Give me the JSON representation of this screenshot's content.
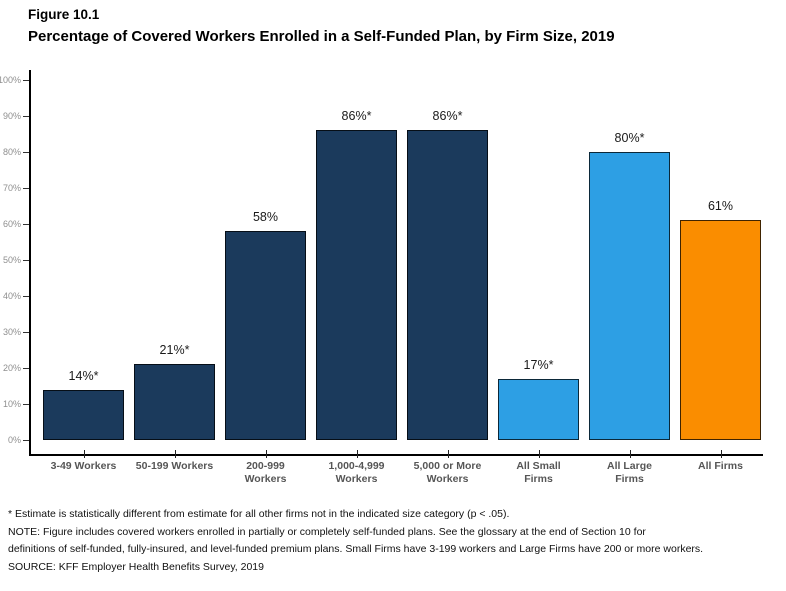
{
  "figure": {
    "label": "Figure 10.1",
    "title": "Percentage of Covered Workers Enrolled in a Self-Funded Plan, by Firm Size, 2019"
  },
  "chart_data": {
    "type": "bar",
    "title": "Percentage of Covered Workers Enrolled in a Self-Funded Plan, by Firm Size, 2019",
    "categories": [
      "3-49 Workers",
      "50-199 Workers",
      "200-999 Workers",
      "1,000-4,999 Workers",
      "5,000 or More Workers",
      "All Small Firms",
      "All Large Firms",
      "All Firms"
    ],
    "category_lines": [
      [
        "3-49 Workers"
      ],
      [
        "50-199 Workers"
      ],
      [
        "200-999",
        "Workers"
      ],
      [
        "1,000-4,999",
        "Workers"
      ],
      [
        "5,000 or More",
        "Workers"
      ],
      [
        "All Small",
        "Firms"
      ],
      [
        "All Large",
        "Firms"
      ],
      [
        "All Firms"
      ]
    ],
    "values": [
      14,
      21,
      58,
      86,
      86,
      17,
      80,
      61
    ],
    "value_labels": [
      "14%*",
      "21%*",
      "58%",
      "86%*",
      "86%*",
      "17%*",
      "80%*",
      "61%"
    ],
    "bar_color_roles": [
      "firm_size",
      "firm_size",
      "firm_size",
      "firm_size",
      "firm_size",
      "summary_blue",
      "summary_blue",
      "summary_orange"
    ],
    "colors": {
      "firm_size": "#1B3A5C",
      "summary_blue": "#2D9FE4",
      "summary_orange": "#FA8D00"
    },
    "xlabel": "",
    "ylabel": "",
    "ylim": [
      0,
      100
    ],
    "y_tick_step": 10,
    "y_tick_suffix": "%",
    "grid": false,
    "legend": false
  },
  "footnotes": {
    "line1": "* Estimate is statistically different from estimate for all other firms not in the indicated size category (p < .05).",
    "line2": "NOTE: Figure includes covered workers enrolled in partially or completely self-funded plans. See the glossary at the end of Section 10 for",
    "line3": "definitions of self-funded, fully-insured, and level-funded premium plans. Small Firms have 3-199 workers and Large Firms have 200 or more workers.",
    "line4": "SOURCE: KFF Employer Health Benefits Survey, 2019"
  }
}
